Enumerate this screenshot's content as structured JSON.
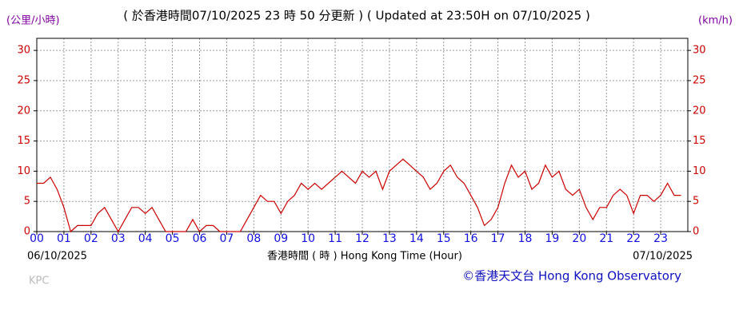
{
  "chart_data": {
    "type": "line",
    "title": "( 於香港時間07/10/2025 23 時 50 分更新 ) ( Updated at 23:50H on 07/10/2025 )",
    "y_label": "(公里/小時)",
    "y2_label": "(km/h)",
    "x_label": "香港時間 ( 時 )  Hong Kong Time (Hour)",
    "start_date": "06/10/2025",
    "end_date": "07/10/2025",
    "station": "KPC",
    "credit": "©香港天文台 Hong Kong Observatory",
    "grid": true,
    "xlim": [
      0,
      24
    ],
    "xticks": [
      {
        "value": 0,
        "label": "00"
      },
      {
        "value": 1,
        "label": "01"
      },
      {
        "value": 2,
        "label": "02"
      },
      {
        "value": 3,
        "label": "03"
      },
      {
        "value": 4,
        "label": "04"
      },
      {
        "value": 5,
        "label": "05"
      },
      {
        "value": 6,
        "label": "06"
      },
      {
        "value": 7,
        "label": "07"
      },
      {
        "value": 8,
        "label": "08"
      },
      {
        "value": 9,
        "label": "09"
      },
      10,
      11,
      12,
      13,
      14,
      15,
      16,
      17,
      18,
      19,
      20,
      21,
      22,
      23
    ],
    "ylim": [
      0,
      32
    ],
    "yticks": [
      0,
      5,
      10,
      15,
      20,
      25,
      30
    ],
    "y2lim": [
      0,
      32
    ],
    "y2ticks": [
      0,
      5,
      10,
      15,
      20,
      25,
      30
    ],
    "series": [
      {
        "name": "KPC",
        "color": "#cc0000",
        "x": [
          0,
          0.25,
          0.5,
          0.75,
          1,
          1.25,
          1.5,
          1.75,
          2,
          2.25,
          2.5,
          2.75,
          3,
          3.25,
          3.5,
          3.75,
          4,
          4.25,
          4.5,
          4.75,
          5,
          5.25,
          5.5,
          5.75,
          6,
          6.25,
          6.5,
          6.75,
          7,
          7.25,
          7.5,
          7.75,
          8,
          8.25,
          8.5,
          8.75,
          9,
          9.25,
          9.5,
          9.75,
          10,
          10.25,
          10.5,
          10.75,
          11,
          11.25,
          11.5,
          11.75,
          12,
          12.25,
          12.5,
          12.75,
          13,
          13.25,
          13.5,
          13.75,
          14,
          14.25,
          14.5,
          14.75,
          15,
          15.25,
          15.5,
          15.75,
          16,
          16.25,
          16.5,
          16.75,
          17,
          17.25,
          17.5,
          17.75,
          18,
          18.25,
          18.5,
          18.75,
          19,
          19.25,
          19.5,
          19.75,
          20,
          20.25,
          20.5,
          20.75,
          21,
          21.25,
          21.5,
          21.75,
          22,
          22.25,
          22.5,
          22.75,
          23,
          23.25,
          23.5,
          23.75
        ],
        "values": [
          8,
          8,
          9,
          7,
          4,
          0,
          1,
          1,
          1,
          3,
          4,
          2,
          0,
          2,
          4,
          4,
          3,
          4,
          2,
          0,
          0,
          0,
          0,
          2,
          0,
          1,
          1,
          0,
          0,
          0,
          0,
          2,
          4,
          6,
          5,
          5,
          3,
          5,
          6,
          8,
          7,
          8,
          7,
          8,
          9,
          10,
          9,
          8,
          10,
          9,
          10,
          7,
          10,
          11,
          12,
          11,
          10,
          9,
          7,
          8,
          10,
          11,
          9,
          8,
          6,
          4,
          1,
          2,
          4,
          8,
          11,
          9,
          10,
          7,
          8,
          11,
          9,
          10,
          7,
          6,
          7,
          4,
          2,
          4,
          4,
          6,
          7,
          6,
          3,
          6,
          6,
          5,
          6,
          8,
          6,
          6
        ]
      }
    ]
  }
}
